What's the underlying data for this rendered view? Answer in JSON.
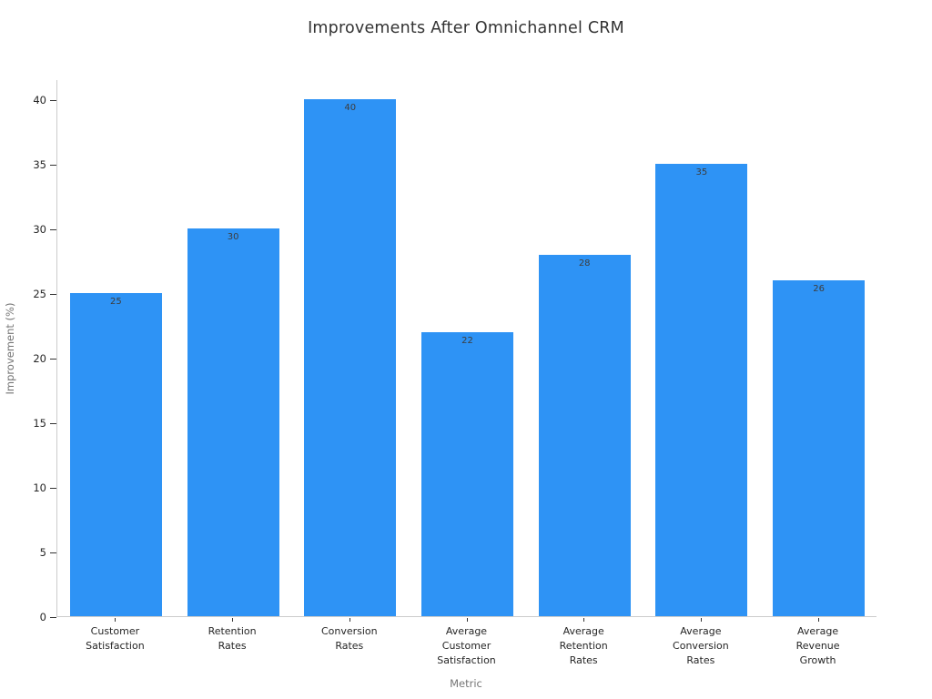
{
  "chart_data": {
    "type": "bar",
    "title": "Improvements After Omnichannel CRM",
    "xlabel": "Metric",
    "ylabel": "Improvement (%)",
    "categories": [
      "Customer\nSatisfaction",
      "Retention\nRates",
      "Conversion\nRates",
      "Average\nCustomer\nSatisfaction",
      "Average\nRetention\nRates",
      "Average\nConversion\nRates",
      "Average\nRevenue\nGrowth"
    ],
    "values": [
      25,
      30,
      40,
      22,
      28,
      35,
      26
    ],
    "bar_labels": [
      "25",
      "30",
      "40",
      "22",
      "28",
      "35",
      "26"
    ],
    "yticks": [
      0,
      5,
      10,
      15,
      20,
      25,
      30,
      35,
      40
    ],
    "ylim": [
      0,
      41.5
    ],
    "grid": false,
    "legend_position": "none",
    "colors": {
      "bar": "#2e93f5",
      "title": "#333333",
      "tick_label": "#262626",
      "value_label": "#3d3d3d",
      "axis_label": "#757575",
      "spine": "#cccccc",
      "tick_mark": "#333333",
      "background": "#ffffff"
    }
  }
}
